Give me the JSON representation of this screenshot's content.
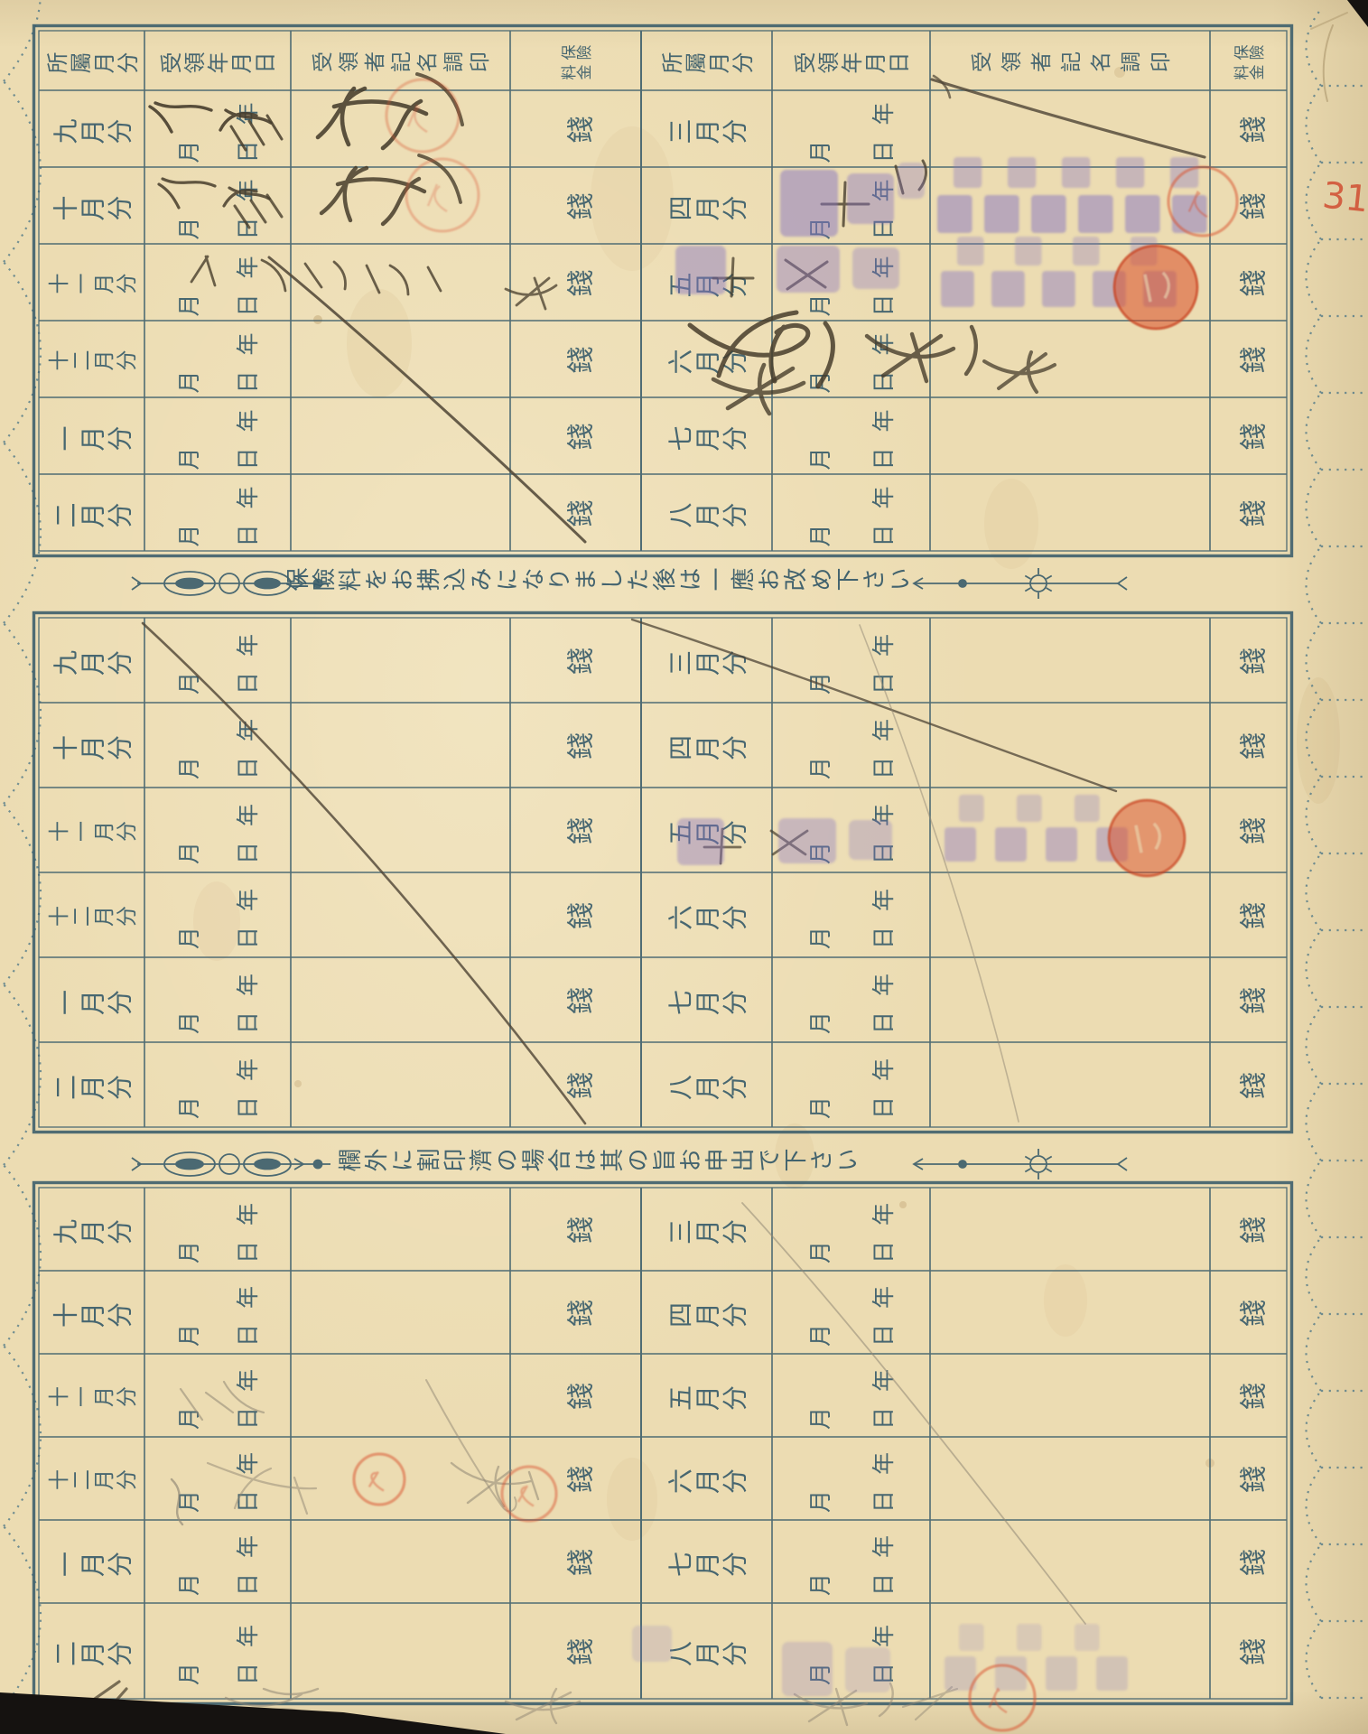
{
  "document": {
    "colors": {
      "paper": "#ecdcb2",
      "ink": "#3a5d6b",
      "stamp_purple": "#8673c1",
      "seal_red": "#d94f2b",
      "handwriting": "#473d2c",
      "pencil": "#8f8674"
    },
    "table": {
      "headers": {
        "month": "所屬月分",
        "date": "受領年月日",
        "signee": "受領者記名調印",
        "fee_line1": "保險",
        "fee_line2": "料金"
      },
      "date_marks": {
        "year": "年",
        "month": "月",
        "day": "日"
      },
      "fee_unit": "錢",
      "months_first": [
        "九月分",
        "十月分",
        "十一月分",
        "十二月分",
        "一月分",
        "二月分"
      ],
      "months_second": [
        "三月分",
        "四月分",
        "五月分",
        "六月分",
        "七月分",
        "八月分"
      ]
    },
    "dividers": [
      {
        "text": "保險料をお拂込みになりました後は一應お改め下さい"
      },
      {
        "text": "欄外に割印濟の場合は其の旨お申出で下さい"
      }
    ],
    "margin_note": "31"
  }
}
